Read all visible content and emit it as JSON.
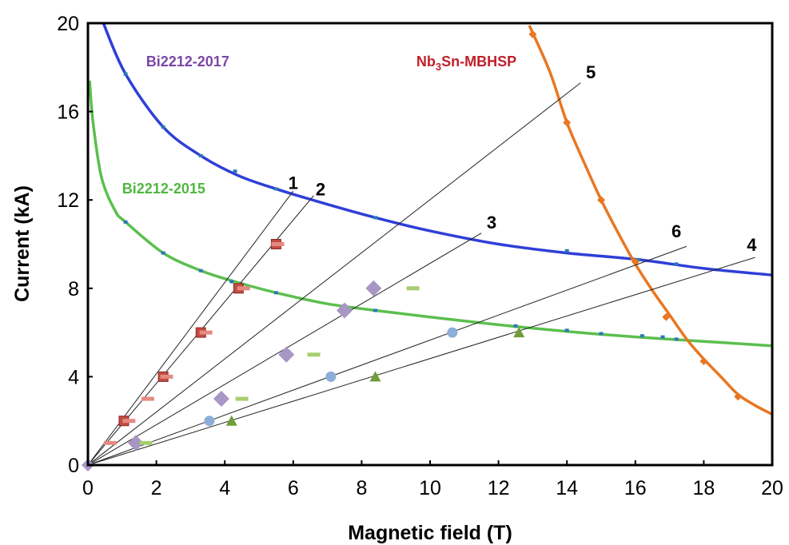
{
  "chart_data": {
    "type": "scatter",
    "xlabel": "Magnetic field (T)",
    "ylabel": "Current (kA)",
    "xlim": [
      0,
      20
    ],
    "ylim": [
      0,
      20
    ],
    "xticks": [
      "0",
      "2",
      "4",
      "6",
      "8",
      "10",
      "12",
      "14",
      "16",
      "18",
      "20"
    ],
    "yticks": [
      "0",
      "4",
      "8",
      "12",
      "16",
      "20"
    ],
    "grid": false,
    "curves": [
      {
        "name": "Bi2212-2017",
        "label": "Bi2212-2017",
        "label_pos": [
          1.7,
          18.05
        ],
        "color": "#2f3fd8",
        "label_color": "#7a48a6",
        "points": [
          [
            0.45,
            20.0
          ],
          [
            1.1,
            17.7
          ],
          [
            2.2,
            15.3
          ],
          [
            3.3,
            14.0
          ],
          [
            4.4,
            13.1
          ],
          [
            5.5,
            12.5
          ],
          [
            7.0,
            11.8
          ],
          [
            8.4,
            11.2
          ],
          [
            10.0,
            10.6
          ],
          [
            12.0,
            10.0
          ],
          [
            14.0,
            9.6
          ],
          [
            16.1,
            9.3
          ],
          [
            18.0,
            8.9
          ],
          [
            20.0,
            8.6
          ]
        ],
        "markers": [
          [
            1.1,
            17.7
          ],
          [
            2.2,
            15.3
          ],
          [
            3.3,
            14.0
          ],
          [
            4.3,
            13.3
          ],
          [
            5.5,
            12.5
          ],
          [
            8.4,
            11.2
          ],
          [
            14.0,
            9.7
          ],
          [
            16.1,
            9.3
          ],
          [
            17.2,
            9.1
          ]
        ]
      },
      {
        "name": "Bi2212-2015",
        "label": "Bi2212-2015",
        "label_pos": [
          1.0,
          12.3
        ],
        "color": "#5cbf4f",
        "label_color": "#4fb83e",
        "points": [
          [
            0.05,
            17.4
          ],
          [
            0.15,
            15.5
          ],
          [
            0.4,
            13.0
          ],
          [
            0.8,
            11.5
          ],
          [
            1.1,
            11.0
          ],
          [
            2.2,
            9.6
          ],
          [
            3.3,
            8.8
          ],
          [
            4.3,
            8.3
          ],
          [
            5.5,
            7.8
          ],
          [
            7.0,
            7.3
          ],
          [
            8.4,
            7.0
          ],
          [
            10.0,
            6.7
          ],
          [
            12.0,
            6.35
          ],
          [
            14.0,
            6.05
          ],
          [
            16.0,
            5.8
          ],
          [
            18.0,
            5.6
          ],
          [
            20.0,
            5.4
          ]
        ],
        "markers": [
          [
            1.1,
            11.0
          ],
          [
            2.2,
            9.6
          ],
          [
            3.3,
            8.8
          ],
          [
            4.2,
            8.3
          ],
          [
            5.5,
            7.8
          ],
          [
            8.4,
            7.0
          ],
          [
            12.5,
            6.3
          ],
          [
            14.0,
            6.1
          ],
          [
            15.0,
            5.95
          ],
          [
            16.2,
            5.85
          ],
          [
            16.8,
            5.8
          ],
          [
            17.2,
            5.7
          ]
        ]
      },
      {
        "name": "Nb3Sn-MBHSP",
        "label_main": "Nb",
        "label_sub": "3",
        "label_rest": "Sn-MBHSP",
        "label_pos": [
          9.6,
          18.05
        ],
        "color": "#e87722",
        "label_color": "#c0202a",
        "points": [
          [
            12.9,
            19.9
          ],
          [
            13.5,
            17.8
          ],
          [
            14.0,
            15.5
          ],
          [
            14.5,
            13.7
          ],
          [
            15.0,
            12.0
          ],
          [
            15.5,
            10.5
          ],
          [
            16.0,
            9.1
          ],
          [
            16.5,
            7.9
          ],
          [
            17.0,
            6.8
          ],
          [
            17.5,
            5.7
          ],
          [
            18.0,
            4.8
          ],
          [
            18.5,
            4.0
          ],
          [
            19.0,
            3.2
          ],
          [
            19.5,
            2.7
          ],
          [
            20.0,
            2.3
          ]
        ],
        "markers": [
          [
            13.0,
            19.5
          ],
          [
            14.0,
            15.5
          ],
          [
            15.0,
            12.0
          ],
          [
            16.0,
            9.2
          ],
          [
            16.9,
            6.7
          ],
          [
            18.0,
            4.7
          ],
          [
            19.0,
            3.1
          ]
        ]
      }
    ],
    "load_lines": [
      {
        "label": "1",
        "end": [
          6.0,
          12.4
        ],
        "label_pos": [
          6.0,
          12.5
        ]
      },
      {
        "label": "2",
        "end": [
          6.6,
          12.2
        ],
        "label_pos": [
          6.8,
          12.2
        ]
      },
      {
        "label": "3",
        "end": [
          11.5,
          10.5
        ],
        "label_pos": [
          11.8,
          10.7
        ]
      },
      {
        "label": "4",
        "end": [
          19.5,
          9.4
        ],
        "label_pos": [
          19.4,
          9.7
        ]
      },
      {
        "label": "5",
        "end": [
          14.4,
          17.3
        ],
        "label_pos": [
          14.7,
          17.5
        ]
      },
      {
        "label": "6",
        "end": [
          17.5,
          9.9
        ],
        "label_pos": [
          17.2,
          10.3
        ]
      }
    ],
    "data_markers": [
      {
        "series": "1",
        "shape": "square",
        "color": "#c24b42",
        "points": [
          [
            1.05,
            2.0
          ],
          [
            2.2,
            4.0
          ],
          [
            3.3,
            6.0
          ],
          [
            4.4,
            8.0
          ],
          [
            5.5,
            10.0
          ]
        ]
      },
      {
        "series": "2",
        "shape": "dash",
        "color": "#e58a80",
        "points": [
          [
            0.65,
            1.0
          ],
          [
            1.2,
            2.0
          ],
          [
            1.75,
            3.0
          ],
          [
            2.3,
            4.0
          ],
          [
            3.45,
            6.0
          ],
          [
            4.55,
            8.0
          ],
          [
            5.55,
            10.0
          ]
        ]
      },
      {
        "series": "5",
        "shape": "diamond",
        "color": "#a896c4",
        "points": [
          [
            1.4,
            1.0
          ],
          [
            3.9,
            3.0
          ],
          [
            5.8,
            5.0
          ],
          [
            7.5,
            7.0
          ],
          [
            8.35,
            8.0
          ]
        ]
      },
      {
        "series": "3",
        "shape": "dash",
        "color": "#a7cd6f",
        "points": [
          [
            1.7,
            1.0
          ],
          [
            4.5,
            3.0
          ],
          [
            6.6,
            5.0
          ],
          [
            9.5,
            8.0
          ]
        ]
      },
      {
        "series": "6",
        "shape": "circle",
        "color": "#8caed9",
        "points": [
          [
            3.55,
            2.0
          ],
          [
            7.1,
            4.0
          ],
          [
            10.65,
            6.0
          ]
        ]
      },
      {
        "series": "4",
        "shape": "triangle",
        "color": "#6e9d3a",
        "points": [
          [
            4.2,
            2.0
          ],
          [
            8.4,
            4.0
          ],
          [
            12.6,
            6.0
          ]
        ]
      }
    ]
  }
}
